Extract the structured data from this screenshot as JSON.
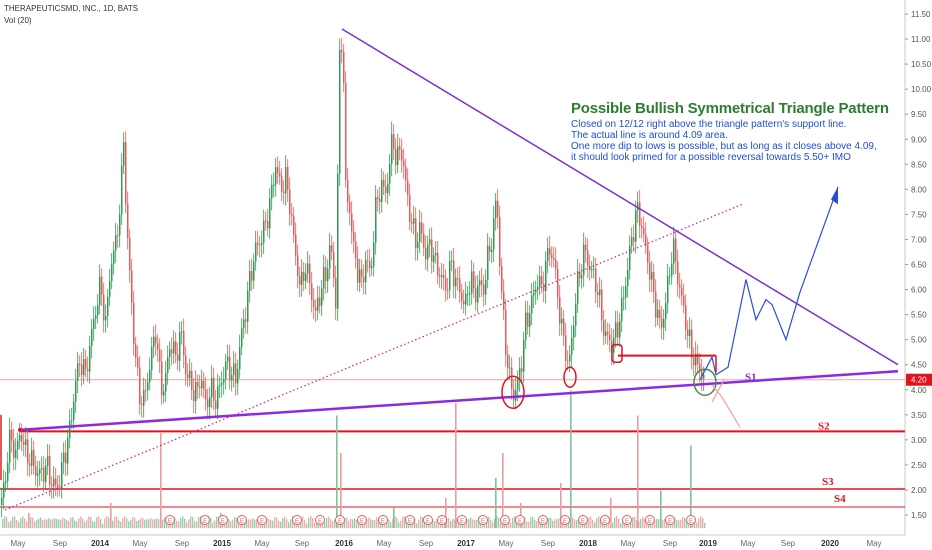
{
  "header": {
    "symbol": "THERAPEUTICSMD, INC., 1D, BATS",
    "volume_label": "Vol (20)"
  },
  "annotation": {
    "title": "Possible Bullish Symmetrical Triangle Pattern",
    "lines": [
      "Closed on 12/12 right above the triangle pattern's support line.",
      "The actual line is around 4.09 area.",
      "One more dip to lows is possible, but as long as it closes above 4.09,",
      "it should look primed for a possible reversal towards 5.50+ IMO"
    ]
  },
  "chart_data": {
    "type": "candlestick",
    "title": "",
    "xlabel": "",
    "ylabel": "",
    "ylim": [
      1.25,
      11.6
    ],
    "y_ticks": [
      "11.50",
      "11.00",
      "10.50",
      "10.00",
      "9.50",
      "9.00",
      "8.50",
      "8.00",
      "7.50",
      "7.00",
      "6.50",
      "6.00",
      "5.50",
      "5.00",
      "4.50",
      "4.00",
      "3.50",
      "3.00",
      "2.50",
      "2.00",
      "1.50"
    ],
    "x_ticks": [
      "May",
      "Sep",
      "2014",
      "May",
      "Sep",
      "2015",
      "May",
      "Sep",
      "2016",
      "May",
      "Sep",
      "2017",
      "May",
      "Sep",
      "2018",
      "May",
      "Sep",
      "2019",
      "May",
      "Sep",
      "2020",
      "May"
    ],
    "last_price": "4.20",
    "support_levels": [
      {
        "name": "S1",
        "value": 4.09
      },
      {
        "name": "S2",
        "value": 3.17
      },
      {
        "name": "S3",
        "value": 2.02
      },
      {
        "name": "S4",
        "value": 1.66
      }
    ],
    "price_path": [
      [
        0,
        1.7
      ],
      [
        4,
        2.1
      ],
      [
        8,
        2.9
      ],
      [
        11,
        3.0
      ],
      [
        15,
        2.7
      ],
      [
        20,
        3.2
      ],
      [
        24,
        2.8
      ],
      [
        30,
        2.6
      ],
      [
        35,
        2.4
      ],
      [
        40,
        2.3
      ],
      [
        46,
        2.5
      ],
      [
        50,
        2.2
      ],
      [
        55,
        2.05
      ],
      [
        58,
        2.1
      ],
      [
        65,
        2.8
      ],
      [
        70,
        3.3
      ],
      [
        75,
        4.2
      ],
      [
        80,
        4.6
      ],
      [
        85,
        4.3
      ],
      [
        90,
        5.0
      ],
      [
        95,
        5.6
      ],
      [
        100,
        6.1
      ],
      [
        105,
        5.3
      ],
      [
        110,
        6.5
      ],
      [
        115,
        6.9
      ],
      [
        120,
        7.8
      ],
      [
        123,
        9.0
      ],
      [
        126,
        7.3
      ],
      [
        129,
        6.3
      ],
      [
        134,
        4.8
      ],
      [
        138,
        4.0
      ],
      [
        142,
        3.7
      ],
      [
        146,
        4.1
      ],
      [
        150,
        4.6
      ],
      [
        155,
        5.2
      ],
      [
        158,
        4.5
      ],
      [
        162,
        3.9
      ],
      [
        166,
        4.4
      ],
      [
        170,
        5.0
      ],
      [
        175,
        4.6
      ],
      [
        180,
        5.2
      ],
      [
        185,
        4.4
      ],
      [
        190,
        4.1
      ],
      [
        196,
        3.9
      ],
      [
        200,
        4.3
      ],
      [
        205,
        3.7
      ],
      [
        210,
        4.0
      ],
      [
        215,
        3.8
      ],
      [
        220,
        4.1
      ],
      [
        225,
        4.5
      ],
      [
        230,
        4.4
      ],
      [
        235,
        4.2
      ],
      [
        240,
        5.0
      ],
      [
        245,
        5.6
      ],
      [
        250,
        6.3
      ],
      [
        255,
        6.8
      ],
      [
        260,
        7.0
      ],
      [
        265,
        7.3
      ],
      [
        270,
        7.8
      ],
      [
        275,
        8.5
      ],
      [
        280,
        8.0
      ],
      [
        285,
        8.2
      ],
      [
        290,
        7.6
      ],
      [
        294,
        6.8
      ],
      [
        300,
        6.0
      ],
      [
        305,
        6.5
      ],
      [
        310,
        6.0
      ],
      [
        315,
        5.5
      ],
      [
        320,
        6.0
      ],
      [
        325,
        6.3
      ],
      [
        330,
        6.9
      ],
      [
        335,
        5.8
      ],
      [
        339,
        10.6
      ],
      [
        342,
        11.2
      ],
      [
        345,
        8.0
      ],
      [
        349,
        7.6
      ],
      [
        353,
        6.8
      ],
      [
        357,
        6.4
      ],
      [
        361,
        6.1
      ],
      [
        365,
        6.6
      ],
      [
        370,
        6.3
      ],
      [
        375,
        7.6
      ],
      [
        380,
        8.1
      ],
      [
        384,
        7.9
      ],
      [
        388,
        8.3
      ],
      [
        392,
        9.1
      ],
      [
        396,
        8.5
      ],
      [
        400,
        8.9
      ],
      [
        405,
        8.1
      ],
      [
        410,
        7.4
      ],
      [
        415,
        7.0
      ],
      [
        420,
        7.2
      ],
      [
        425,
        6.7
      ],
      [
        430,
        6.9
      ],
      [
        435,
        6.5
      ],
      [
        440,
        6.3
      ],
      [
        445,
        6.0
      ],
      [
        450,
        6.5
      ],
      [
        455,
        6.2
      ],
      [
        460,
        5.9
      ],
      [
        465,
        5.7
      ],
      [
        470,
        6.3
      ],
      [
        474,
        5.8
      ],
      [
        478,
        6.2
      ],
      [
        482,
        5.9
      ],
      [
        487,
        6.6
      ],
      [
        492,
        7.1
      ],
      [
        496,
        7.9
      ],
      [
        499,
        6.6
      ],
      [
        502,
        5.6
      ],
      [
        505,
        4.9
      ],
      [
        509,
        4.2
      ],
      [
        513,
        3.9
      ],
      [
        517,
        4.1
      ],
      [
        521,
        4.6
      ],
      [
        525,
        5.3
      ],
      [
        529,
        5.6
      ],
      [
        533,
        5.9
      ],
      [
        537,
        6.2
      ],
      [
        541,
        6.0
      ],
      [
        545,
        6.5
      ],
      [
        549,
        6.8
      ],
      [
        553,
        6.6
      ],
      [
        557,
        5.9
      ],
      [
        561,
        5.2
      ],
      [
        565,
        4.8
      ],
      [
        568,
        4.4
      ],
      [
        572,
        5.2
      ],
      [
        576,
        6.0
      ],
      [
        580,
        6.4
      ],
      [
        584,
        6.8
      ],
      [
        588,
        6.5
      ],
      [
        592,
        6.3
      ],
      [
        596,
        6.1
      ],
      [
        600,
        5.6
      ],
      [
        604,
        5.1
      ],
      [
        608,
        5.0
      ],
      [
        612,
        4.9
      ],
      [
        616,
        5.2
      ],
      [
        620,
        5.5
      ],
      [
        624,
        6.0
      ],
      [
        628,
        6.6
      ],
      [
        632,
        7.1
      ],
      [
        636,
        7.6
      ],
      [
        640,
        7.4
      ],
      [
        644,
        6.9
      ],
      [
        648,
        6.5
      ],
      [
        652,
        6.0
      ],
      [
        656,
        5.6
      ],
      [
        660,
        5.2
      ],
      [
        664,
        5.6
      ],
      [
        668,
        6.2
      ],
      [
        672,
        6.9
      ],
      [
        676,
        6.4
      ],
      [
        680,
        5.9
      ],
      [
        684,
        5.5
      ],
      [
        688,
        5.0
      ],
      [
        692,
        4.7
      ],
      [
        696,
        4.5
      ],
      [
        700,
        4.4
      ],
      [
        704,
        4.15
      ]
    ],
    "volume_spikes": [
      [
        28,
        0.06
      ],
      [
        110,
        0.1
      ],
      [
        160,
        0.38
      ],
      [
        220,
        0.06
      ],
      [
        336,
        0.45
      ],
      [
        340,
        0.3
      ],
      [
        393,
        0.08
      ],
      [
        445,
        0.12
      ],
      [
        455,
        0.5
      ],
      [
        495,
        0.2
      ],
      [
        502,
        0.3
      ],
      [
        520,
        0.1
      ],
      [
        560,
        0.18
      ],
      [
        570,
        0.55
      ],
      [
        610,
        0.12
      ],
      [
        637,
        0.45
      ],
      [
        660,
        0.15
      ],
      [
        690,
        0.33
      ]
    ],
    "earnings_marks": [
      170,
      205,
      223,
      242,
      262,
      297,
      320,
      340,
      362,
      383,
      410,
      428,
      442,
      462,
      483,
      505,
      520,
      543,
      565,
      583,
      605,
      627,
      650,
      670,
      691
    ]
  },
  "colors": {
    "triangle_line": "#8a2be2",
    "resistance_line": "#7b2fd6",
    "support_red": "#e0121e",
    "projection_blue": "#2b4dcf",
    "dotted_trend": "#d81b78",
    "candle_up": "#2e9a55",
    "candle_down": "#e35a5a",
    "circle_red": "#e0121e",
    "circle_green": "#4a8a4a"
  }
}
